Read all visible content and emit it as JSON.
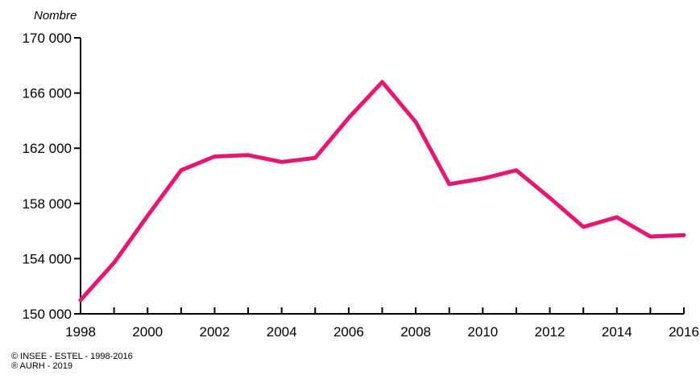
{
  "chart_data": {
    "type": "line",
    "ylabel": "Nombre",
    "xlabel": "",
    "x": [
      1998,
      1999,
      2000,
      2001,
      2002,
      2003,
      2004,
      2005,
      2006,
      2007,
      2008,
      2009,
      2010,
      2011,
      2012,
      2013,
      2014,
      2015,
      2016
    ],
    "xticks": [
      "1998",
      "2000",
      "2002",
      "2004",
      "2006",
      "2008",
      "2010",
      "2012",
      "2014",
      "2016"
    ],
    "xtick_values": [
      1998,
      2000,
      2002,
      2004,
      2006,
      2008,
      2010,
      2012,
      2014,
      2016
    ],
    "yticks": [
      "150 000",
      "154 000",
      "158 000",
      "162 000",
      "166 000",
      "170 000"
    ],
    "ytick_values": [
      150000,
      154000,
      158000,
      162000,
      166000,
      170000
    ],
    "ylim": [
      150000,
      170000
    ],
    "xlim": [
      1998,
      2016
    ],
    "grid": false,
    "series": [
      {
        "values": [
          151000,
          153700,
          157100,
          160400,
          161400,
          161500,
          161000,
          161300,
          164200,
          166800,
          163900,
          159400,
          159800,
          160400,
          158400,
          156300,
          157000,
          155600,
          155700
        ],
        "color": "#e5186f"
      }
    ]
  },
  "credits": {
    "line1": "© INSEE - ESTEL - 1998-2016",
    "line2": "® AURH - 2019"
  }
}
